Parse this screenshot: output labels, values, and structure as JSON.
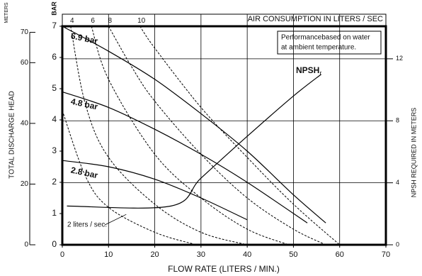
{
  "chart_data": {
    "type": "line",
    "x_label": "FLOW RATE (LITERS / MIN.)",
    "y_label": "BAR",
    "y3_label": "METERS",
    "y3_title": "TOTAL DISCHARGE HEAD",
    "y2_label": "NPSH REQUIRED IN METERS",
    "top_label": "AIR CONSUMPTION IN LITERS / SEC",
    "note": [
      "Performancebased on water",
      "at ambient temperature."
    ],
    "xlim": [
      0,
      70
    ],
    "xticks": [
      0,
      10,
      20,
      30,
      40,
      50,
      60,
      70
    ],
    "ylim": [
      0,
      7
    ],
    "yticks": [
      0,
      1,
      2,
      3,
      4,
      5,
      6,
      7
    ],
    "y2lim": [
      0,
      14.1
    ],
    "y2ticks": [
      0,
      4,
      8,
      12
    ],
    "y3lim": [
      0,
      72
    ],
    "y3ticks": [
      0,
      20,
      40,
      60,
      70
    ],
    "grid": true,
    "series": [
      {
        "name": "6.9 bar",
        "color": "#000000",
        "x": [
          0,
          10,
          20,
          30,
          40,
          50,
          57
        ],
        "values": [
          7,
          6.2,
          5.3,
          4.2,
          3.0,
          1.6,
          0.7
        ]
      },
      {
        "name": "4.8 bar",
        "color": "#000000",
        "x": [
          0,
          10,
          20,
          30,
          40,
          53
        ],
        "values": [
          4.9,
          4.4,
          3.7,
          2.9,
          2.0,
          0.7
        ]
      },
      {
        "name": "2.8 bar",
        "color": "#000000",
        "x": [
          0,
          10,
          20,
          30,
          40
        ],
        "values": [
          2.7,
          2.5,
          2.1,
          1.5,
          0.8
        ]
      }
    ],
    "air_series": [
      {
        "name": "2 liters / sec.",
        "color": "#000000",
        "x": [
          0,
          5,
          10,
          20,
          29
        ],
        "values": [
          4.3,
          2.2,
          1.2,
          0.4,
          0
        ]
      },
      {
        "name": "4",
        "color": "#000000",
        "x": [
          1.8,
          5,
          10,
          20,
          30,
          40
        ],
        "values": [
          7,
          4.5,
          2.8,
          1.3,
          0.4,
          0
        ]
      },
      {
        "name": "6",
        "color": "#000000",
        "x": [
          6.3,
          10,
          20,
          30,
          40,
          49
        ],
        "values": [
          7,
          5.3,
          2.9,
          1.5,
          0.5,
          0
        ]
      },
      {
        "name": "8",
        "color": "#000000",
        "x": [
          10,
          15,
          20,
          30,
          40,
          50,
          57
        ],
        "values": [
          7,
          5.7,
          4.6,
          2.9,
          1.5,
          0.5,
          0
        ]
      },
      {
        "name": "10",
        "color": "#000000",
        "x": [
          16.8,
          20,
          30,
          40,
          50,
          60
        ],
        "values": [
          7,
          6.3,
          4.4,
          2.8,
          1.3,
          0
        ]
      }
    ],
    "npsh": {
      "name": "NPSH",
      "subscript": "r",
      "axis": "y2",
      "color": "#000000",
      "x": [
        1,
        23.5,
        30,
        40,
        50,
        56
      ],
      "values": [
        2.5,
        2.5,
        4.3,
        7.0,
        9.6,
        11
      ]
    }
  }
}
